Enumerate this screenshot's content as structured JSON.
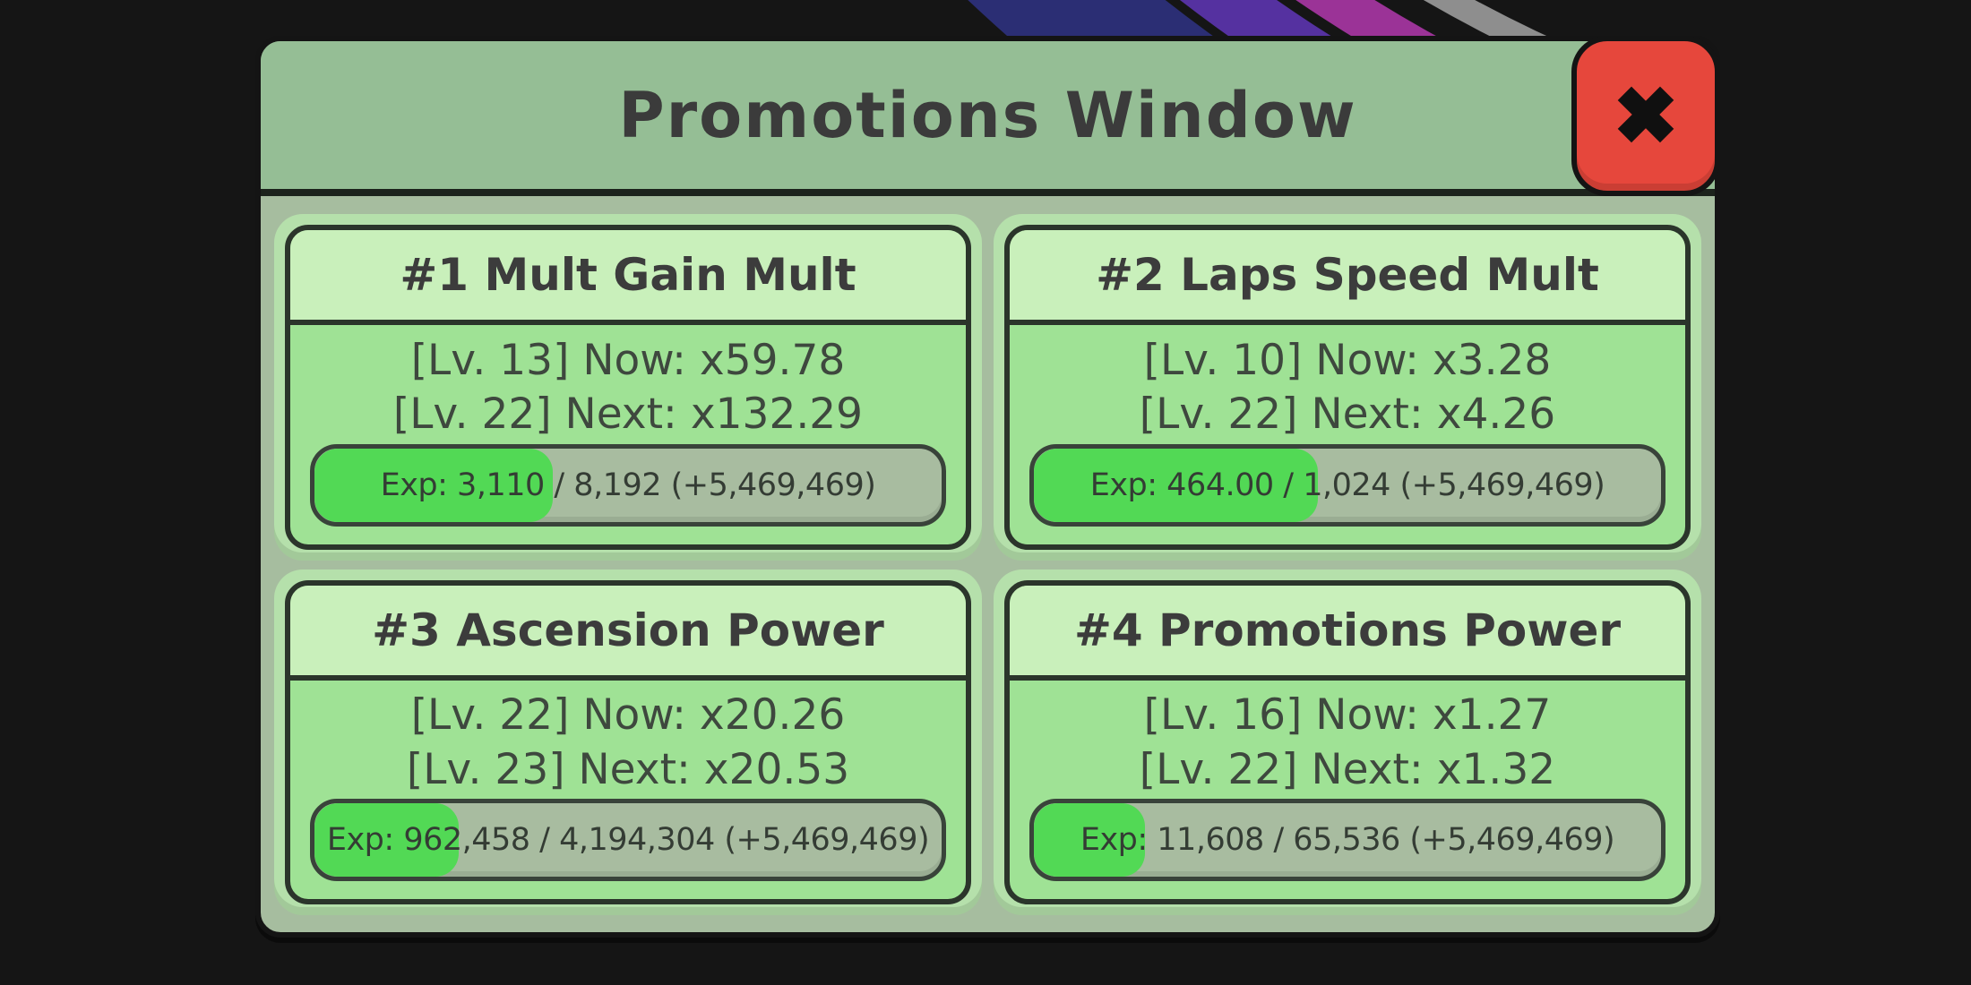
{
  "window": {
    "title": "Promotions Window",
    "close_button": "✖"
  },
  "colors": {
    "titlebar_bg": "#95be95",
    "body_bg": "#a6bd9f",
    "pad_bg": "#b5e0ab",
    "card_header_bg": "#c9f0bb",
    "card_body_bg": "#9fe295",
    "bar_bg": "#a8bca0",
    "fill_green": "#52d955",
    "close_red": "#e6473c"
  },
  "decoration": {
    "arcs": [
      "#2b2e74",
      "#5531a0",
      "#9b3397",
      "#8e8e8e"
    ]
  },
  "cards": [
    {
      "title": "#1 Mult Gain Mult",
      "now_line": "[Lv. 13] Now: x59.78",
      "next_line": "[Lv. 22] Next: x132.29",
      "exp_text": "Exp: 3,110 / 8,192 (+5,469,469)",
      "exp_fill": "38%"
    },
    {
      "title": "#2 Laps Speed Mult",
      "now_line": "[Lv. 10] Now: x3.28",
      "next_line": "[Lv. 22] Next: x4.26",
      "exp_text": "Exp: 464.00 / 1,024 (+5,469,469)",
      "exp_fill": "45.3%"
    },
    {
      "title": "#3 Ascension Power",
      "now_line": "[Lv. 22] Now: x20.26",
      "next_line": "[Lv. 23] Next: x20.53",
      "exp_text": "Exp: 962,458 / 4,194,304 (+5,469,469)",
      "exp_fill": "23%"
    },
    {
      "title": "#4 Promotions Power",
      "now_line": "[Lv. 16] Now: x1.27",
      "next_line": "[Lv. 22] Next: x1.32",
      "exp_text": "Exp: 11,608 / 65,536 (+5,469,469)",
      "exp_fill": "17.7%"
    }
  ]
}
